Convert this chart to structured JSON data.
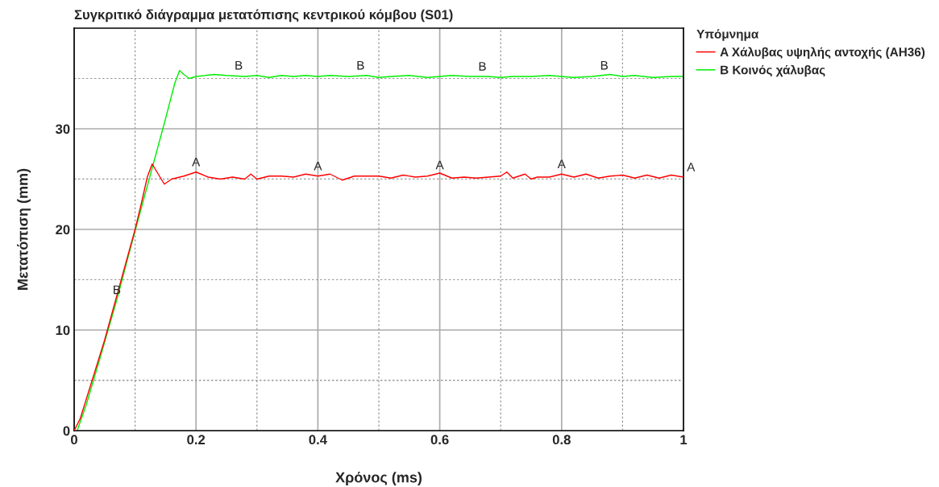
{
  "chart_data": {
    "type": "line",
    "title": "Συγκριτικό διάγραμμα μετατόπισης κεντρικού κόμβου (S01)",
    "xlabel": "Χρόνος (ms)",
    "ylabel": "Μετατόπιση (mm)",
    "legend_title": "Υπόμνημα",
    "legend": "right",
    "grid": true,
    "marker": "none",
    "line_style": "solid",
    "xlim": [
      0,
      1
    ],
    "ylim": [
      0,
      40
    ],
    "xticks": [
      0,
      {
        "value": 0.1,
        "label": null
      },
      0.2,
      {
        "value": 0.3,
        "label": null
      },
      0.4,
      {
        "value": 0.5,
        "label": null
      },
      0.6,
      {
        "value": 0.7,
        "label": null
      },
      0.8,
      {
        "value": 0.9,
        "label": null
      },
      1
    ],
    "yticks": [
      0,
      {
        "value": 5,
        "label": null
      },
      10,
      {
        "value": 15,
        "label": null
      },
      20,
      {
        "value": 25,
        "label": null
      },
      30,
      {
        "value": 35,
        "label": null
      }
    ],
    "series": [
      {
        "name": "A Χάλυβας υψηλής αντοχής (AH36)",
        "color": "#ff0000",
        "x": [
          0,
          0.01,
          0.05,
          0.1,
          0.11,
          0.12,
          0.128,
          0.135,
          0.148,
          0.16,
          0.18,
          0.2,
          0.22,
          0.24,
          0.26,
          0.28,
          0.29,
          0.3,
          0.32,
          0.34,
          0.36,
          0.38,
          0.4,
          0.42,
          0.44,
          0.46,
          0.48,
          0.5,
          0.52,
          0.54,
          0.56,
          0.58,
          0.6,
          0.62,
          0.64,
          0.66,
          0.68,
          0.7,
          0.71,
          0.72,
          0.74,
          0.75,
          0.76,
          0.78,
          0.8,
          0.82,
          0.84,
          0.86,
          0.88,
          0.9,
          0.92,
          0.94,
          0.96,
          0.98,
          1.0
        ],
        "values": [
          0,
          1.2,
          9,
          20,
          22.5,
          25.2,
          26.5,
          25.8,
          24.5,
          25.0,
          25.3,
          25.7,
          25.2,
          25.0,
          25.2,
          25.0,
          25.5,
          25.0,
          25.3,
          25.3,
          25.2,
          25.5,
          25.3,
          25.5,
          24.9,
          25.3,
          25.3,
          25.3,
          25.1,
          25.4,
          25.2,
          25.3,
          25.6,
          25.1,
          25.2,
          25.1,
          25.2,
          25.3,
          25.7,
          25.1,
          25.5,
          25.0,
          25.2,
          25.2,
          25.5,
          25.2,
          25.5,
          25.1,
          25.3,
          25.4,
          25.1,
          25.4,
          25.1,
          25.4,
          25.2
        ]
      },
      {
        "name": "B Κοινός χάλυβας",
        "color": "#00ee00",
        "x": [
          0.005,
          0.02,
          0.04,
          0.07,
          0.09,
          0.12,
          0.15,
          0.165,
          0.173,
          0.18,
          0.189,
          0.2,
          0.23,
          0.25,
          0.28,
          0.3,
          0.32,
          0.34,
          0.36,
          0.38,
          0.4,
          0.42,
          0.45,
          0.48,
          0.5,
          0.52,
          0.55,
          0.58,
          0.6,
          0.62,
          0.65,
          0.68,
          0.7,
          0.72,
          0.75,
          0.78,
          0.8,
          0.82,
          0.85,
          0.88,
          0.9,
          0.92,
          0.95,
          0.98,
          1.0
        ],
        "values": [
          0,
          2.6,
          6.7,
          13,
          17.6,
          24.3,
          31,
          34.5,
          35.8,
          35.4,
          35.0,
          35.2,
          35.4,
          35.3,
          35.2,
          35.3,
          35.1,
          35.3,
          35.2,
          35.3,
          35.2,
          35.3,
          35.2,
          35.3,
          35.1,
          35.2,
          35.3,
          35.1,
          35.2,
          35.3,
          35.2,
          35.2,
          35.1,
          35.2,
          35.2,
          35.3,
          35.2,
          35.1,
          35.2,
          35.4,
          35.2,
          35.3,
          35.1,
          35.2,
          35.2
        ]
      }
    ],
    "annotations": [
      {
        "text": "A",
        "x": 0.2,
        "y": 25.7
      },
      {
        "text": "A",
        "x": 0.4,
        "y": 25.3
      },
      {
        "text": "A",
        "x": 0.6,
        "y": 25.4
      },
      {
        "text": "A",
        "x": 0.8,
        "y": 25.5
      },
      {
        "text": "A",
        "x": 1.0,
        "y": 25.2
      },
      {
        "text": "B",
        "x": 0.07,
        "y": 13
      },
      {
        "text": "B",
        "x": 0.27,
        "y": 35.3
      },
      {
        "text": "B",
        "x": 0.47,
        "y": 35.3
      },
      {
        "text": "B",
        "x": 0.67,
        "y": 35.2
      },
      {
        "text": "B",
        "x": 0.87,
        "y": 35.3
      }
    ]
  }
}
